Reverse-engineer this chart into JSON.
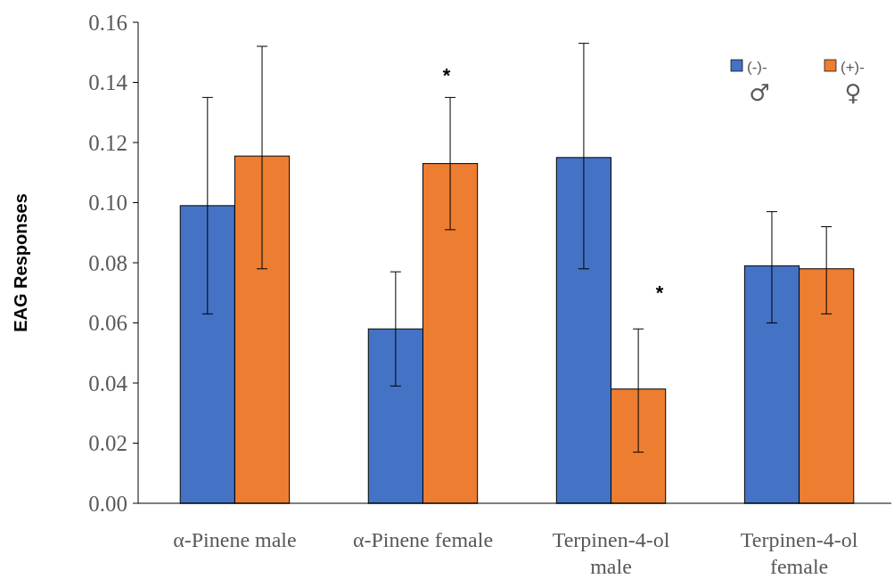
{
  "chart_data": {
    "type": "bar",
    "ylabel": "EAG Responses",
    "categories": [
      "α-Pinene male",
      "α-Pinene female",
      "Terpinen-4-ol male",
      "Terpinen-4-ol female"
    ],
    "series": [
      {
        "name": "(-)- ♂",
        "color": "#4472c4",
        "values": [
          0.099,
          0.058,
          0.115,
          0.079
        ],
        "errors": [
          [
            0.063,
            0.135
          ],
          [
            0.039,
            0.077
          ],
          [
            0.078,
            0.153
          ],
          [
            0.06,
            0.097
          ]
        ]
      },
      {
        "name": "(+)- ♀",
        "color": "#ed7d31",
        "values": [
          0.1155,
          0.113,
          0.038,
          0.078
        ],
        "errors": [
          [
            0.078,
            0.152
          ],
          [
            0.091,
            0.135
          ],
          [
            0.017,
            0.058
          ],
          [
            0.063,
            0.092
          ]
        ]
      }
    ],
    "annotations": [
      "*",
      "*"
    ],
    "ylim": [
      0,
      0.16
    ],
    "yticks": [
      {
        "value": 0,
        "label": "0.00"
      },
      {
        "value": 0.02,
        "label": "0.02"
      },
      {
        "value": 0.04,
        "label": "0.04"
      },
      {
        "value": 0.06,
        "label": "0.06"
      },
      {
        "value": 0.08,
        "label": "0.08"
      },
      {
        "value": 0.1,
        "label": "0.10"
      },
      {
        "value": 0.12,
        "label": "0.12"
      },
      {
        "value": 0.14,
        "label": "0.14"
      },
      {
        "value": 0.16,
        "label": "0.16"
      }
    ],
    "grid": false,
    "legend": "top right"
  }
}
